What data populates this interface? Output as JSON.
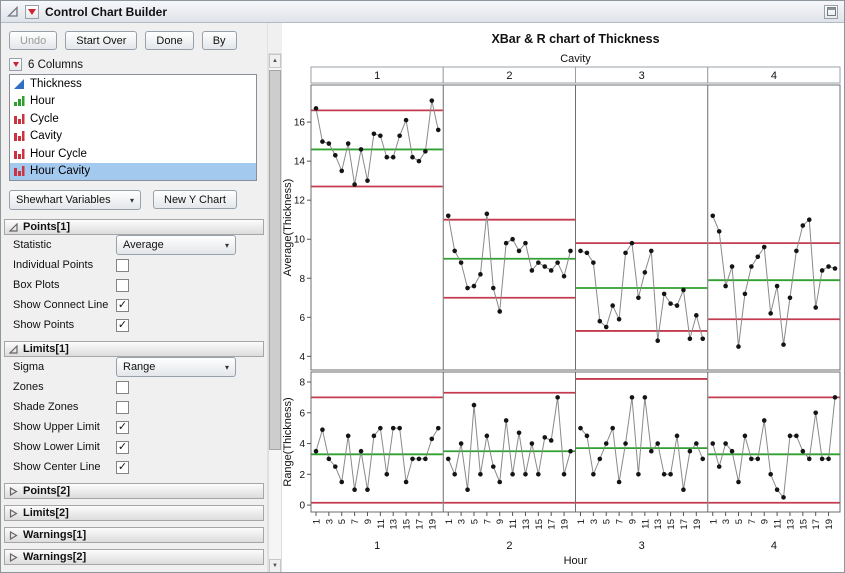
{
  "window": {
    "title": "Control Chart Builder"
  },
  "toolbar": {
    "undo": "Undo",
    "start_over": "Start Over",
    "done": "Done",
    "by": "By"
  },
  "icons": {
    "dropdown_arrow": "▾",
    "scroll_up": "▲",
    "scroll_down": "▼",
    "checkmark": "✓"
  },
  "columns_panel": {
    "header": "6 Columns",
    "items": [
      {
        "label": "Thickness",
        "type": "continuous",
        "selected": false
      },
      {
        "label": "Hour",
        "type": "ordinal",
        "selected": false
      },
      {
        "label": "Cycle",
        "type": "nominal",
        "selected": false
      },
      {
        "label": "Cavity",
        "type": "nominal",
        "selected": false
      },
      {
        "label": "Hour Cycle",
        "type": "nominal",
        "selected": false
      },
      {
        "label": "Hour Cavity",
        "type": "nominal",
        "selected": true
      }
    ]
  },
  "chart_controls": {
    "chart_type_value": "Shewhart Variables",
    "new_y_chart_label": "New Y Chart"
  },
  "points1": {
    "title": "Points[1]",
    "statistic_label": "Statistic",
    "statistic_value": "Average",
    "options": [
      {
        "label": "Individual Points",
        "checked": false
      },
      {
        "label": "Box Plots",
        "checked": false
      },
      {
        "label": "Show Connect Line",
        "checked": true
      },
      {
        "label": "Show Points",
        "checked": true
      }
    ]
  },
  "limits1": {
    "title": "Limits[1]",
    "sigma_label": "Sigma",
    "sigma_value": "Range",
    "options": [
      {
        "label": "Zones",
        "checked": false
      },
      {
        "label": "Shade Zones",
        "checked": false
      },
      {
        "label": "Show Upper Limit",
        "checked": true
      },
      {
        "label": "Show Lower Limit",
        "checked": true
      },
      {
        "label": "Show Center Line",
        "checked": true
      }
    ]
  },
  "collapsed_sections": [
    {
      "title": "Points[2]"
    },
    {
      "title": "Limits[2]"
    },
    {
      "title": "Warnings[1]"
    },
    {
      "title": "Warnings[2]"
    }
  ],
  "chart_data": {
    "type": "line",
    "title": "XBar & R chart of Thickness",
    "group_label": "Cavity",
    "groups": [
      "1",
      "2",
      "3",
      "4"
    ],
    "xlabel": "Hour",
    "x_tick_labels": [
      "1",
      "3",
      "5",
      "7",
      "9",
      "11",
      "13",
      "15",
      "17",
      "19"
    ],
    "colors": {
      "limit": "#c23b4e",
      "center": "#2ea12e",
      "line": "#8a8a8a",
      "point": "#141414"
    },
    "panels": [
      {
        "name": "xbar",
        "ylabel": "Average(Thickness)",
        "ylim": [
          3.3,
          17.9
        ],
        "yticks": [
          4,
          6,
          8,
          10,
          12,
          14,
          16
        ],
        "series": [
          {
            "group": "1",
            "ucl": 16.6,
            "center": 14.6,
            "lcl": 12.7,
            "values": [
              16.7,
              15.0,
              14.9,
              14.3,
              13.5,
              14.9,
              12.8,
              14.6,
              13.0,
              15.4,
              15.3,
              14.2,
              14.2,
              15.3,
              16.1,
              14.2,
              14.0,
              14.5,
              17.1,
              15.6
            ]
          },
          {
            "group": "2",
            "ucl": 11.0,
            "center": 9.0,
            "lcl": 7.0,
            "values": [
              11.2,
              9.4,
              8.8,
              7.5,
              7.6,
              8.2,
              11.3,
              7.5,
              6.3,
              9.8,
              10.0,
              9.4,
              9.8,
              8.4,
              8.8,
              8.6,
              8.4,
              8.8,
              8.1,
              9.4
            ]
          },
          {
            "group": "3",
            "ucl": 9.8,
            "center": 7.5,
            "lcl": 5.3,
            "values": [
              9.4,
              9.3,
              8.8,
              5.8,
              5.5,
              6.6,
              5.9,
              9.3,
              9.8,
              7.0,
              8.3,
              9.4,
              4.8,
              7.2,
              6.7,
              6.6,
              7.4,
              4.9,
              6.1,
              4.9
            ]
          },
          {
            "group": "4",
            "ucl": 9.8,
            "center": 7.9,
            "lcl": 5.9,
            "values": [
              11.2,
              10.4,
              7.6,
              8.6,
              4.5,
              7.2,
              8.6,
              9.1,
              9.6,
              6.2,
              7.6,
              4.6,
              7.0,
              9.4,
              10.7,
              11.0,
              6.5,
              8.4,
              8.6,
              8.5
            ]
          }
        ]
      },
      {
        "name": "range",
        "ylabel": "Range(Thickness)",
        "ylim": [
          -0.45,
          8.65
        ],
        "yticks": [
          0,
          2,
          4,
          6,
          8
        ],
        "series": [
          {
            "group": "1",
            "ucl": 7.0,
            "center": 3.3,
            "lcl": 0.15,
            "values": [
              3.5,
              4.9,
              3.0,
              2.5,
              1.5,
              4.5,
              1.0,
              3.5,
              1.0,
              4.5,
              5.0,
              2.0,
              5.0,
              5.0,
              1.5,
              3.0,
              3.0,
              3.0,
              4.3,
              5.0
            ]
          },
          {
            "group": "2",
            "ucl": 7.3,
            "center": 3.5,
            "lcl": 0.15,
            "values": [
              3.0,
              2.0,
              4.0,
              1.0,
              6.5,
              2.0,
              4.5,
              2.5,
              1.5,
              5.5,
              2.0,
              4.7,
              2.0,
              4.0,
              2.0,
              4.4,
              4.2,
              7.0,
              2.0,
              3.5
            ]
          },
          {
            "group": "3",
            "ucl": 8.2,
            "center": 3.7,
            "lcl": 0.15,
            "values": [
              5.0,
              4.5,
              2.0,
              3.0,
              4.0,
              5.0,
              1.5,
              4.0,
              7.0,
              2.0,
              7.0,
              3.5,
              4.0,
              2.0,
              2.0,
              4.5,
              1.0,
              3.5,
              4.0,
              3.0
            ]
          },
          {
            "group": "4",
            "ucl": 7.0,
            "center": 3.3,
            "lcl": 0.15,
            "values": [
              4.0,
              2.5,
              4.0,
              3.5,
              1.5,
              4.5,
              3.0,
              3.0,
              5.5,
              2.0,
              1.0,
              0.5,
              4.5,
              4.5,
              3.5,
              3.0,
              6.0,
              3.0,
              3.0,
              7.0
            ]
          }
        ]
      }
    ]
  }
}
